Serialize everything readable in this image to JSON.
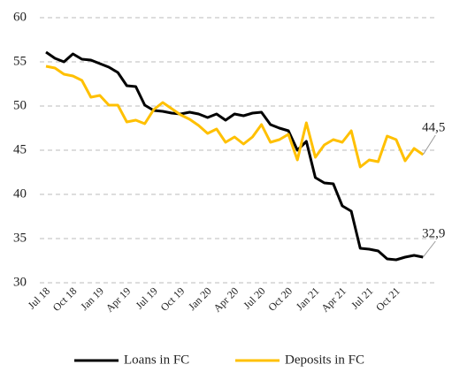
{
  "chart_data": {
    "type": "line",
    "categories": [
      "Jul 18",
      null,
      null,
      "Oct 18",
      null,
      null,
      "Jan 19",
      null,
      null,
      "Apr 19",
      null,
      null,
      "Jul 19",
      null,
      null,
      "Oct 19",
      null,
      null,
      "Jan 20",
      null,
      null,
      "Apr 20",
      null,
      null,
      "Jul 20",
      null,
      null,
      "Oct 20",
      null,
      null,
      "Jan 21",
      null,
      null,
      "Apr 21",
      null,
      null,
      "Jul 21",
      null,
      null,
      "Oct 21",
      null,
      null,
      null
    ],
    "series": [
      {
        "name": "Loans in FC",
        "color": "#000000",
        "values": [
          56.1,
          55.4,
          55.0,
          55.9,
          55.3,
          55.2,
          54.8,
          54.4,
          53.8,
          52.3,
          52.2,
          50.1,
          49.5,
          49.4,
          49.2,
          49.1,
          49.3,
          49.1,
          48.7,
          49.1,
          48.4,
          49.1,
          48.9,
          49.2,
          49.3,
          47.9,
          47.5,
          47.2,
          45.0,
          46.0,
          41.9,
          41.3,
          41.2,
          38.7,
          38.1,
          33.9,
          33.8,
          33.6,
          32.7,
          32.6,
          32.9,
          33.1,
          32.9
        ],
        "value_labels": [
          null,
          null,
          null,
          null,
          null,
          null,
          null,
          null,
          null,
          null,
          null,
          null,
          null,
          null,
          null,
          null,
          null,
          null,
          null,
          null,
          null,
          null,
          null,
          null,
          null,
          null,
          null,
          null,
          null,
          null,
          null,
          null,
          null,
          null,
          null,
          null,
          null,
          null,
          null,
          null,
          null,
          null,
          "32,9"
        ]
      },
      {
        "name": "Deposits in FC",
        "color": "#FFC000",
        "values": [
          54.5,
          54.3,
          53.6,
          53.4,
          52.9,
          51.0,
          51.2,
          50.1,
          50.1,
          48.2,
          48.4,
          48.0,
          49.6,
          50.4,
          49.7,
          49.0,
          48.5,
          47.8,
          46.9,
          47.4,
          45.9,
          46.5,
          45.7,
          46.5,
          47.9,
          45.9,
          46.2,
          46.8,
          43.9,
          48.1,
          44.2,
          45.6,
          46.2,
          45.9,
          47.2,
          43.1,
          43.9,
          43.7,
          46.6,
          46.2,
          43.8,
          45.2,
          44.5
        ],
        "value_labels": [
          null,
          null,
          null,
          null,
          null,
          null,
          null,
          null,
          null,
          null,
          null,
          null,
          null,
          null,
          null,
          null,
          null,
          null,
          null,
          null,
          null,
          null,
          null,
          null,
          null,
          null,
          null,
          null,
          null,
          null,
          null,
          null,
          null,
          null,
          null,
          null,
          null,
          null,
          null,
          null,
          null,
          null,
          "44,5"
        ]
      }
    ],
    "ylim": [
      30,
      60
    ],
    "yticks": [
      30,
      35,
      40,
      45,
      50,
      55,
      60
    ],
    "grid": true,
    "legend": "bottom"
  }
}
